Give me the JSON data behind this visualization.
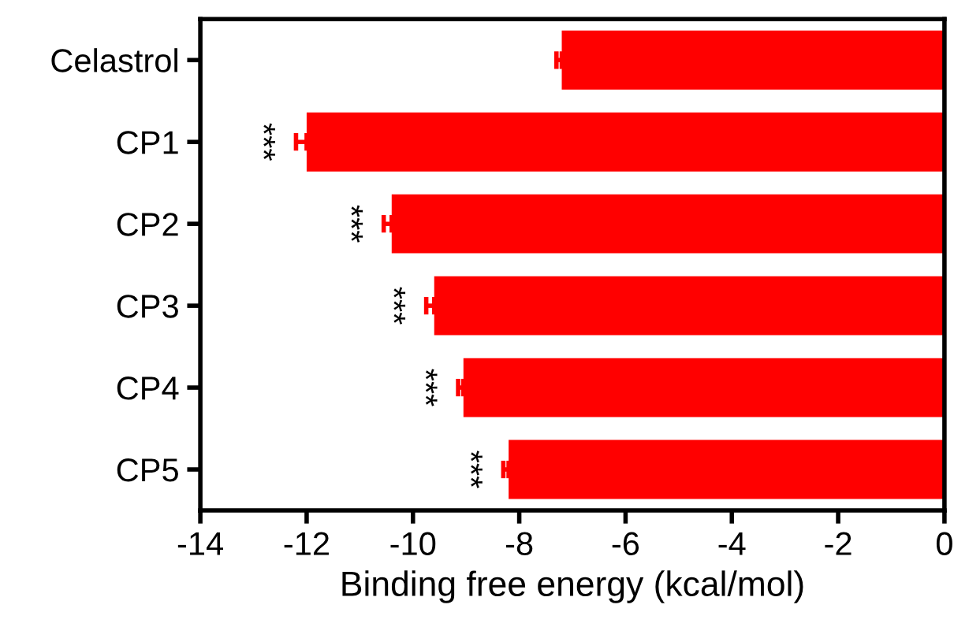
{
  "chart_data": {
    "type": "bar",
    "orientation": "horizontal",
    "xlabel": "Binding free energy (kcal/mol)",
    "categories": [
      "Celastrol",
      "CP1",
      "CP2",
      "CP3",
      "CP4",
      "CP5"
    ],
    "series": [
      {
        "color": "#ff0000",
        "values": [
          -7.2,
          -12.0,
          -10.4,
          -9.6,
          -9.05,
          -8.2
        ],
        "errors": [
          0.1,
          0.2,
          0.15,
          0.15,
          0.1,
          0.1
        ]
      }
    ],
    "xlim": [
      -14,
      0
    ],
    "xticks": [
      -14,
      -12,
      -10,
      -8,
      -6,
      -4,
      -2,
      0
    ],
    "grid": false,
    "annotations": [
      "***",
      "***",
      "***",
      "***",
      "***"
    ]
  }
}
